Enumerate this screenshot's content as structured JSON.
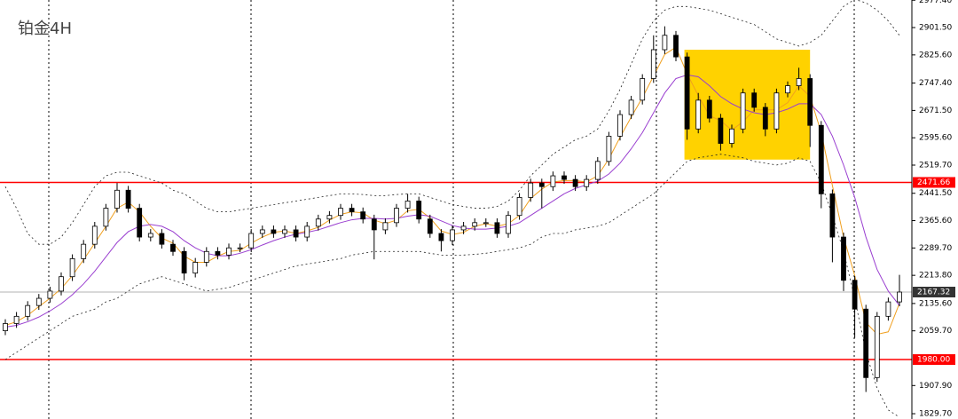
{
  "chart_data": {
    "type": "candlestick",
    "title": "铂金4H",
    "open": [
      2060,
      2080,
      2100,
      2130,
      2150,
      2170,
      2210,
      2260,
      2300,
      2350,
      2400,
      2450,
      2400,
      2320,
      2330,
      2300,
      2280,
      2220,
      2250,
      2280,
      2270,
      2290,
      2290,
      2330,
      2340,
      2330,
      2340,
      2320,
      2350,
      2370,
      2380,
      2400,
      2390,
      2370,
      2340,
      2360,
      2400,
      2420,
      2370,
      2330,
      2310,
      2340,
      2350,
      2360,
      2360,
      2330,
      2380,
      2430,
      2470,
      2460,
      2490,
      2480,
      2460,
      2480,
      2530,
      2600,
      2660,
      2700,
      2760,
      2840,
      2880,
      2820,
      2620,
      2700,
      2650,
      2580,
      2620,
      2720,
      2680,
      2620,
      2720,
      2740,
      2760,
      2630,
      2440,
      2320,
      2200,
      2120,
      1930,
      2100,
      2140
    ],
    "high": [
      2092,
      2112,
      2142,
      2162,
      2182,
      2222,
      2272,
      2312,
      2362,
      2412,
      2470,
      2462,
      2412,
      2342,
      2342,
      2312,
      2292,
      2262,
      2292,
      2292,
      2302,
      2302,
      2342,
      2352,
      2352,
      2352,
      2352,
      2362,
      2382,
      2392,
      2412,
      2412,
      2402,
      2382,
      2372,
      2412,
      2440,
      2432,
      2382,
      2342,
      2352,
      2362,
      2372,
      2372,
      2372,
      2392,
      2442,
      2482,
      2482,
      2502,
      2502,
      2492,
      2492,
      2542,
      2612,
      2672,
      2712,
      2772,
      2880,
      2905,
      2892,
      2832,
      2720,
      2712,
      2662,
      2632,
      2732,
      2732,
      2692,
      2732,
      2752,
      2790,
      2772,
      2642,
      2452,
      2332,
      2212,
      2132,
      2112,
      2152,
      2215
    ],
    "low": [
      2048,
      2068,
      2088,
      2118,
      2138,
      2158,
      2198,
      2248,
      2288,
      2338,
      2388,
      2388,
      2308,
      2308,
      2288,
      2268,
      2200,
      2208,
      2238,
      2258,
      2258,
      2278,
      2278,
      2318,
      2318,
      2318,
      2308,
      2308,
      2338,
      2358,
      2368,
      2378,
      2358,
      2258,
      2328,
      2348,
      2388,
      2358,
      2318,
      2280,
      2298,
      2328,
      2338,
      2348,
      2318,
      2318,
      2368,
      2418,
      2400,
      2448,
      2468,
      2448,
      2448,
      2468,
      2518,
      2588,
      2648,
      2688,
      2748,
      2828,
      2808,
      2590,
      2608,
      2638,
      2560,
      2568,
      2608,
      2668,
      2600,
      2608,
      2708,
      2728,
      2570,
      2400,
      2250,
      2170,
      2040,
      1890,
      1918,
      2088,
      2128
    ],
    "close": [
      2080,
      2100,
      2130,
      2150,
      2170,
      2210,
      2260,
      2300,
      2350,
      2400,
      2450,
      2400,
      2320,
      2330,
      2300,
      2280,
      2220,
      2250,
      2280,
      2270,
      2290,
      2290,
      2330,
      2340,
      2330,
      2340,
      2320,
      2350,
      2370,
      2380,
      2400,
      2390,
      2370,
      2340,
      2360,
      2400,
      2420,
      2370,
      2330,
      2310,
      2340,
      2350,
      2360,
      2360,
      2330,
      2380,
      2430,
      2470,
      2460,
      2490,
      2480,
      2460,
      2480,
      2530,
      2600,
      2660,
      2700,
      2760,
      2840,
      2880,
      2820,
      2620,
      2700,
      2650,
      2580,
      2620,
      2720,
      2680,
      2620,
      2720,
      2740,
      2760,
      2630,
      2440,
      2320,
      2200,
      2120,
      1930,
      2100,
      2140,
      2167.32
    ],
    "up_color": "#ffffff",
    "down_color": "#000000",
    "lines": [
      {
        "color": "#f0a020",
        "dash": false,
        "values": [
          2075,
          2085,
          2103,
          2127,
          2150,
          2177,
          2213,
          2257,
          2303,
          2350,
          2400,
          2417,
          2390,
          2350,
          2317,
          2303,
          2267,
          2250,
          2250,
          2267,
          2280,
          2283,
          2303,
          2320,
          2333,
          2337,
          2330,
          2337,
          2347,
          2367,
          2383,
          2390,
          2387,
          2367,
          2357,
          2367,
          2393,
          2397,
          2373,
          2337,
          2327,
          2333,
          2350,
          2357,
          2350,
          2357,
          2380,
          2427,
          2453,
          2473,
          2477,
          2477,
          2473,
          2490,
          2537,
          2597,
          2653,
          2707,
          2767,
          2827,
          2847,
          2773,
          2713,
          2657,
          2643,
          2617,
          2640,
          2673,
          2673,
          2673,
          2693,
          2740,
          2710,
          2610,
          2463,
          2320,
          2213,
          2083,
          2050,
          2057,
          2136
        ]
      },
      {
        "color": "#9a3fd0",
        "dash": false,
        "values": [
          2070,
          2075,
          2085,
          2098,
          2115,
          2135,
          2160,
          2190,
          2225,
          2265,
          2305,
          2335,
          2350,
          2355,
          2350,
          2335,
          2310,
          2290,
          2275,
          2268,
          2268,
          2275,
          2285,
          2298,
          2310,
          2320,
          2328,
          2333,
          2340,
          2350,
          2360,
          2368,
          2372,
          2372,
          2370,
          2372,
          2378,
          2382,
          2378,
          2365,
          2352,
          2345,
          2342,
          2342,
          2345,
          2350,
          2360,
          2380,
          2400,
          2420,
          2440,
          2455,
          2465,
          2475,
          2495,
          2525,
          2565,
          2610,
          2665,
          2720,
          2760,
          2770,
          2765,
          2740,
          2710,
          2690,
          2675,
          2665,
          2660,
          2665,
          2675,
          2690,
          2690,
          2660,
          2600,
          2520,
          2430,
          2320,
          2230,
          2170,
          2130
        ]
      },
      {
        "color": "#222222",
        "dash": true,
        "values": [
          2460,
          2400,
          2330,
          2300,
          2300,
          2320,
          2360,
          2410,
          2460,
          2490,
          2500,
          2500,
          2490,
          2480,
          2470,
          2450,
          2440,
          2420,
          2400,
          2390,
          2390,
          2395,
          2400,
          2405,
          2410,
          2415,
          2420,
          2425,
          2430,
          2435,
          2440,
          2440,
          2438,
          2435,
          2435,
          2438,
          2440,
          2440,
          2430,
          2420,
          2410,
          2405,
          2400,
          2400,
          2405,
          2420,
          2450,
          2490,
          2520,
          2550,
          2570,
          2590,
          2600,
          2620,
          2670,
          2730,
          2800,
          2870,
          2920,
          2950,
          2960,
          2960,
          2955,
          2950,
          2940,
          2930,
          2920,
          2910,
          2890,
          2870,
          2860,
          2850,
          2860,
          2880,
          2920,
          2960,
          2980,
          2970,
          2950,
          2920,
          2880
        ]
      },
      {
        "color": "#222222",
        "dash": true,
        "values": [
          1980,
          2000,
          2020,
          2040,
          2060,
          2080,
          2100,
          2110,
          2120,
          2140,
          2150,
          2170,
          2190,
          2200,
          2210,
          2200,
          2190,
          2180,
          2170,
          2175,
          2180,
          2190,
          2200,
          2210,
          2220,
          2230,
          2240,
          2245,
          2250,
          2255,
          2260,
          2270,
          2275,
          2280,
          2280,
          2280,
          2280,
          2280,
          2275,
          2270,
          2270,
          2270,
          2272,
          2275,
          2280,
          2285,
          2290,
          2300,
          2320,
          2330,
          2330,
          2340,
          2345,
          2350,
          2360,
          2380,
          2400,
          2420,
          2440,
          2470,
          2500,
          2530,
          2540,
          2545,
          2550,
          2545,
          2540,
          2530,
          2525,
          2520,
          2525,
          2540,
          2530,
          2470,
          2380,
          2280,
          2150,
          2000,
          1900,
          1840,
          1820
        ]
      }
    ],
    "highlight": {
      "from": 61,
      "to": 72,
      "low": 2535,
      "high": 2840,
      "color": "#ffd200"
    },
    "levels": [
      {
        "value": 2471.66,
        "label": "2471.66",
        "color": "#ff0000"
      },
      {
        "value": 1980,
        "label": "1980.00",
        "color": "#ff0000"
      }
    ],
    "last_price": {
      "value": 2167.32,
      "label": "2167.32",
      "color": "#9a9a9a"
    },
    "ylim": [
      1815,
      2978
    ],
    "yticks": [
      {
        "value": 2977.4,
        "label": "2977.40"
      },
      {
        "value": 2901.5,
        "label": "2901.50"
      },
      {
        "value": 2825.6,
        "label": "2825.60"
      },
      {
        "value": 2747.4,
        "label": "2747.40"
      },
      {
        "value": 2671.5,
        "label": "2671.50"
      },
      {
        "value": 2595.6,
        "label": "2595.60"
      },
      {
        "value": 2519.7,
        "label": "2519.70"
      },
      {
        "value": 2441.5,
        "label": "2441.50"
      },
      {
        "value": 2365.6,
        "label": "2365.60"
      },
      {
        "value": 2289.7,
        "label": "2289.70"
      },
      {
        "value": 2213.8,
        "label": "2213.80"
      },
      {
        "value": 2135.6,
        "label": "2135.60"
      },
      {
        "value": 2059.7,
        "label": "2059.70"
      },
      {
        "value": 1907.9,
        "label": "1907.90"
      },
      {
        "value": 1829.7,
        "label": "1829.70"
      }
    ]
  }
}
